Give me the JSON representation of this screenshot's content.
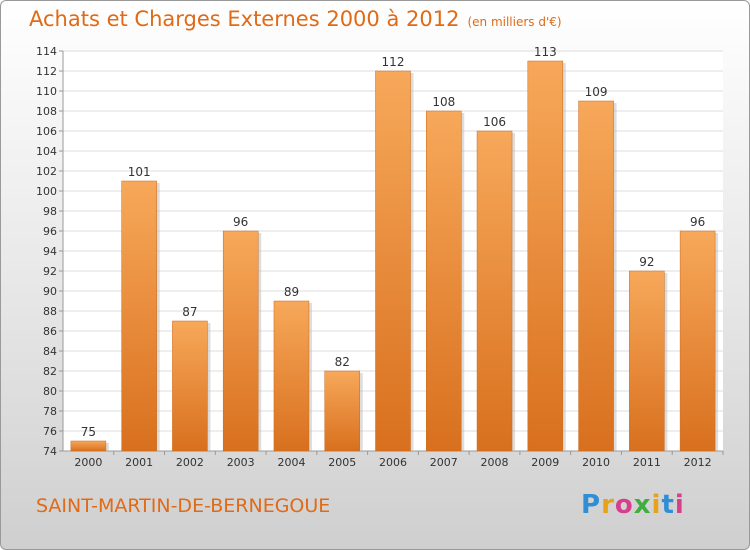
{
  "title": "Achats et Charges Externes 2000 à 2012",
  "unit": "(en milliers d'€)",
  "commune": "SAINT-MARTIN-DE-BERNEGOUE",
  "logo": {
    "letters": [
      "P",
      "r",
      "o",
      "x",
      "i",
      "t",
      "i"
    ],
    "colors": [
      "#2f8fd6",
      "#e8a21a",
      "#d63f8c",
      "#3fae3f",
      "#e8a21a",
      "#2f8fd6",
      "#d63f8c"
    ]
  },
  "colors": {
    "bar": "#f0903a",
    "bar_light": "#f7a85a",
    "bar_dark": "#d8701e",
    "accent": "#e06a16"
  },
  "chart_data": {
    "type": "bar",
    "categories": [
      "2000",
      "2001",
      "2002",
      "2003",
      "2004",
      "2005",
      "2006",
      "2007",
      "2008",
      "2009",
      "2010",
      "2011",
      "2012"
    ],
    "values": [
      75,
      101,
      87,
      96,
      89,
      82,
      112,
      108,
      106,
      113,
      109,
      92,
      96
    ],
    "ylim": [
      74,
      114
    ],
    "yticks": [
      74,
      76,
      78,
      80,
      82,
      84,
      86,
      88,
      90,
      92,
      94,
      96,
      98,
      100,
      102,
      104,
      106,
      108,
      110,
      112,
      114
    ],
    "grid": true
  }
}
